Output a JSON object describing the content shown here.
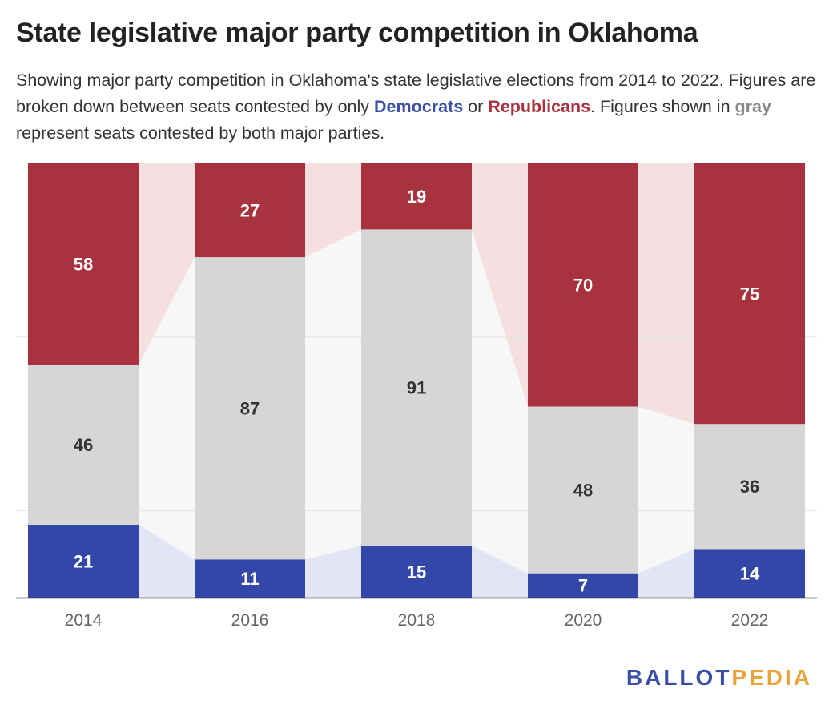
{
  "title": "State legislative major party competition in Oklahoma",
  "subtitle": {
    "part1": "Showing major party competition in Oklahoma's state legislative elections from 2014 to 2022. Figures are broken down between seats contested by only ",
    "democrats": "Democrats",
    "part2": " or ",
    "republicans": "Republicans",
    "part3": ". Figures shown in ",
    "gray": "gray",
    "part4": " represent seats contested by both major parties."
  },
  "colors": {
    "democrat": "#3347a8",
    "republican": "#a8323e",
    "both": "#d6d6d6",
    "democrat_band": "#e2e5f5",
    "republican_band": "#f4dfe1",
    "both_band": "#f7f7f7"
  },
  "chart_data": {
    "type": "bar",
    "stacked": true,
    "normalized": true,
    "categories": [
      "2014",
      "2016",
      "2018",
      "2020",
      "2022"
    ],
    "series": [
      {
        "name": "Democrats",
        "values": [
          21,
          11,
          15,
          7,
          14
        ]
      },
      {
        "name": "Gray",
        "values": [
          46,
          87,
          91,
          48,
          36
        ]
      },
      {
        "name": "Republicans",
        "values": [
          58,
          27,
          19,
          70,
          75
        ]
      }
    ],
    "ylim": [
      0,
      100
    ],
    "grid": true,
    "legend": "none"
  },
  "logo": {
    "part1": "BALLOT",
    "part2": "PEDIA"
  }
}
